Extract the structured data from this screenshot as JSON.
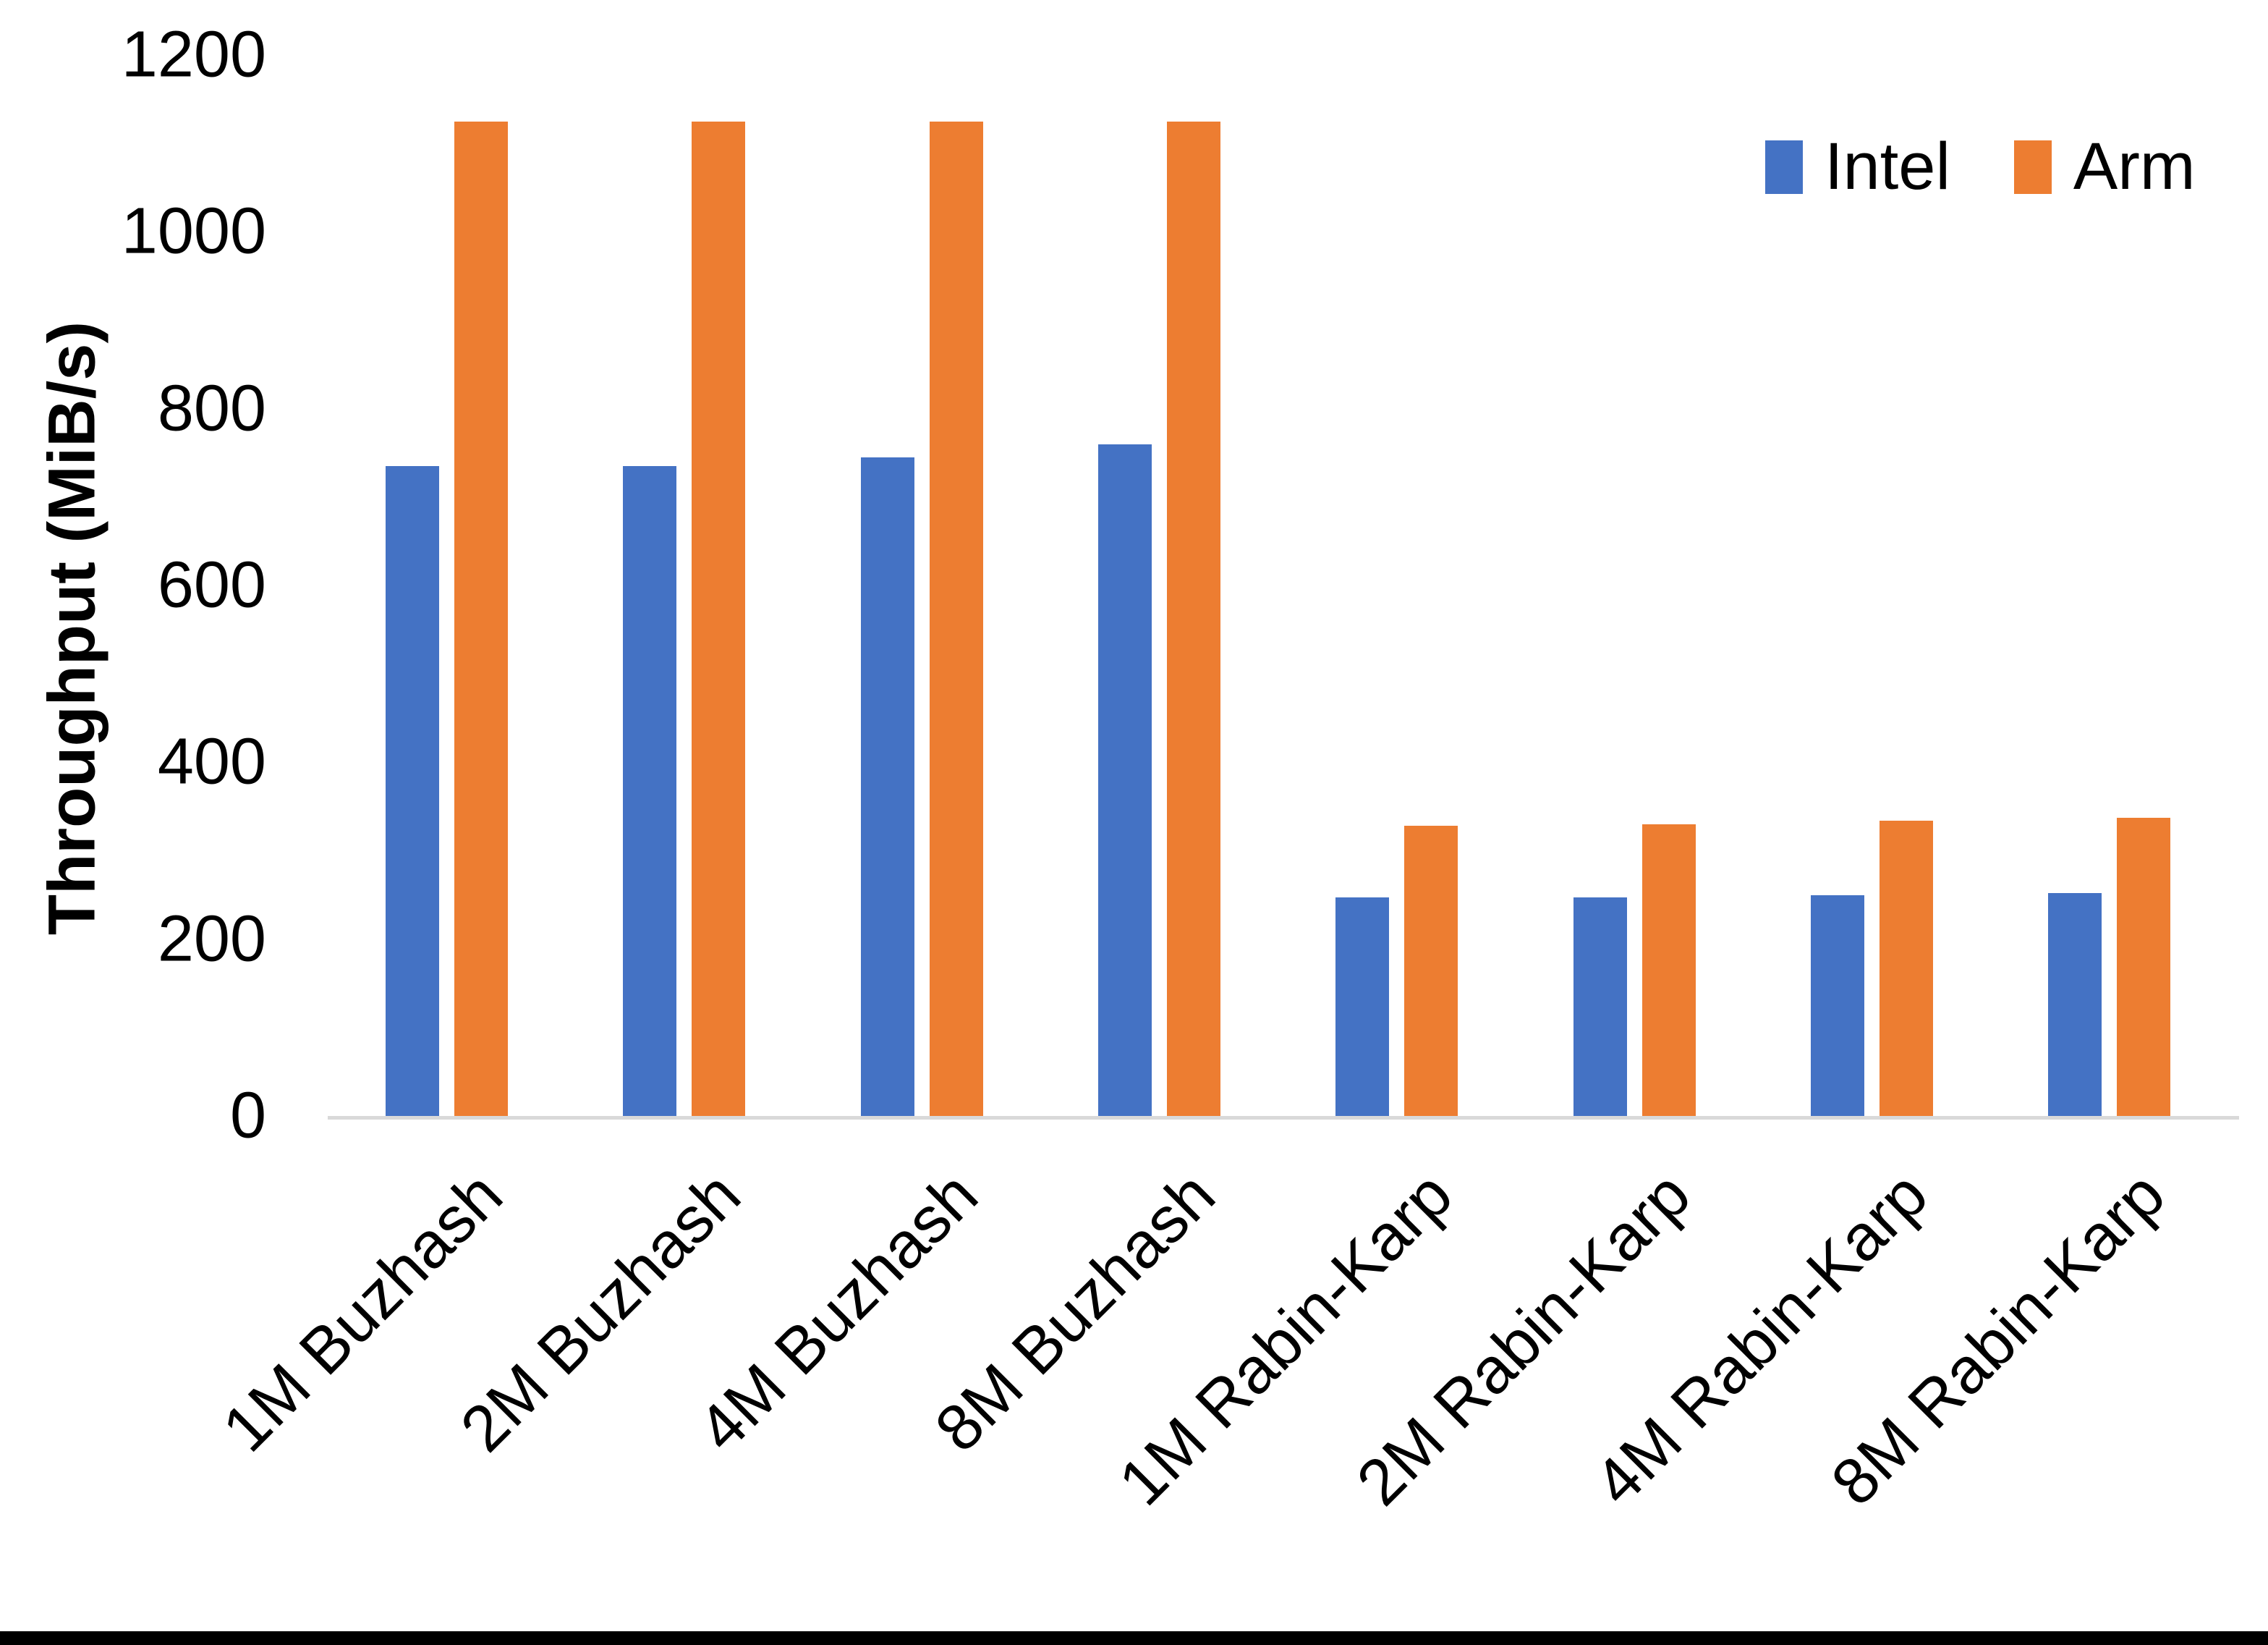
{
  "chart_data": {
    "type": "bar",
    "title": "",
    "xlabel": "",
    "ylabel": "Throughput (MiB/s)",
    "ylim": [
      0,
      1200
    ],
    "ytick_step": 200,
    "ytick_labels": [
      "0",
      "200",
      "400",
      "600",
      "800",
      "1000",
      "1200"
    ],
    "grid": false,
    "legend_position": "top-right",
    "categories": [
      "1M Buzhash",
      "2M Buzhash",
      "4M Buzhash",
      "8M Buzhash",
      "1M Rabin-Karp",
      "2M Rabin-Karp",
      "4M Rabin-Karp",
      "8M Rabin-Karp"
    ],
    "series": [
      {
        "name": "Intel",
        "color": "#4472C4",
        "values": [
          735,
          735,
          745,
          760,
          247,
          247,
          250,
          252
        ]
      },
      {
        "name": "Arm",
        "color": "#ED7D31",
        "values": [
          1125,
          1125,
          1125,
          1125,
          328,
          330,
          334,
          337
        ]
      }
    ]
  },
  "colors": {
    "background": "#FFFFFF",
    "axis_line": "#D9D9D9",
    "text": "#000000",
    "bottom_bar": "#000000"
  }
}
